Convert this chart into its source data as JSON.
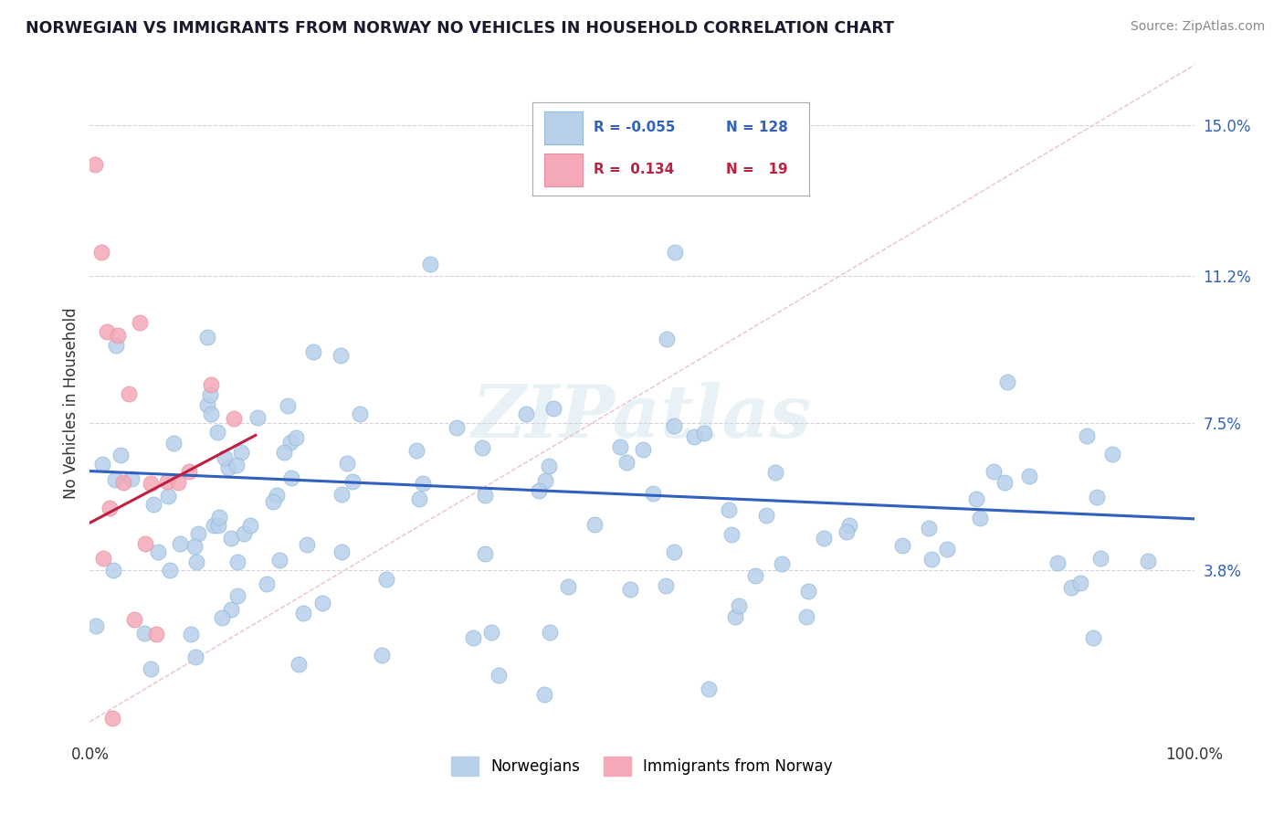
{
  "title": "NORWEGIAN VS IMMIGRANTS FROM NORWAY NO VEHICLES IN HOUSEHOLD CORRELATION CHART",
  "source": "Source: ZipAtlas.com",
  "ylabel": "No Vehicles in Household",
  "xlim": [
    0,
    100
  ],
  "ylim": [
    -0.005,
    0.165
  ],
  "ytick_vals": [
    0.038,
    0.075,
    0.112,
    0.15
  ],
  "ytick_labels": [
    "3.8%",
    "7.5%",
    "11.2%",
    "15.0%"
  ],
  "legend_r1": "-0.055",
  "legend_n1": "128",
  "legend_r2": "0.134",
  "legend_n2": "19",
  "color_norwegian": "#b8d0ea",
  "color_immigrant": "#f4a8b8",
  "color_line_norwegian": "#3060c0",
  "color_line_immigrant": "#c02040",
  "color_diag": "#e8b0b8",
  "color_grid": "#d8d0e0",
  "watermark": "ZIPatlas",
  "nor_line_x0": 0,
  "nor_line_y0": 0.063,
  "nor_line_x1": 100,
  "nor_line_y1": 0.051,
  "imm_line_x0": 0,
  "imm_line_y0": 0.05,
  "imm_line_x1": 15,
  "imm_line_y1": 0.072
}
